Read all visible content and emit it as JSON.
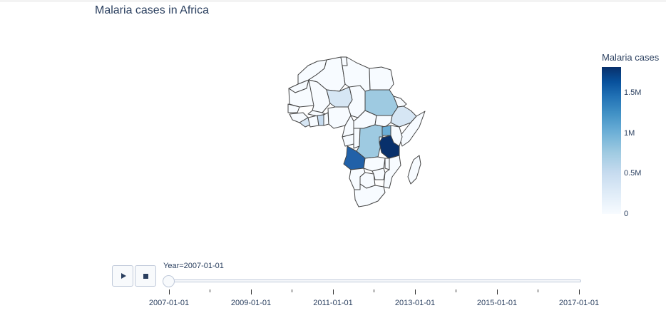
{
  "title": "Malaria cases in Africa",
  "colorbar": {
    "title": "Malaria cases",
    "ticks": [
      "0",
      "0.5M",
      "1M",
      "1.5M"
    ],
    "tick_values": [
      0,
      500000,
      1000000,
      1500000
    ],
    "max": 1800000,
    "scale": [
      "#f7fbff",
      "#deebf7",
      "#c6dbef",
      "#9ecae1",
      "#6baed6",
      "#4292c6",
      "#2171b5",
      "#08519c",
      "#08306b"
    ]
  },
  "controls": {
    "play_icon": "play-icon",
    "stop_icon": "stop-icon"
  },
  "slider": {
    "current_label": "Year=2007-01-01",
    "current_value": "2007-01-01",
    "tick_labels": [
      "2007-01-01",
      "2009-01-01",
      "2011-01-01",
      "2013-01-01",
      "2015-01-01",
      "2017-01-01"
    ]
  },
  "map_colors": {
    "very_low": "#f7fbff",
    "low": "#d6e6f4",
    "medium_low": "#c6dbef",
    "medium": "#9ecae1",
    "medium_high": "#6baed6",
    "high": "#2161a8",
    "very_high": "#08306b",
    "border": "#444444"
  }
}
